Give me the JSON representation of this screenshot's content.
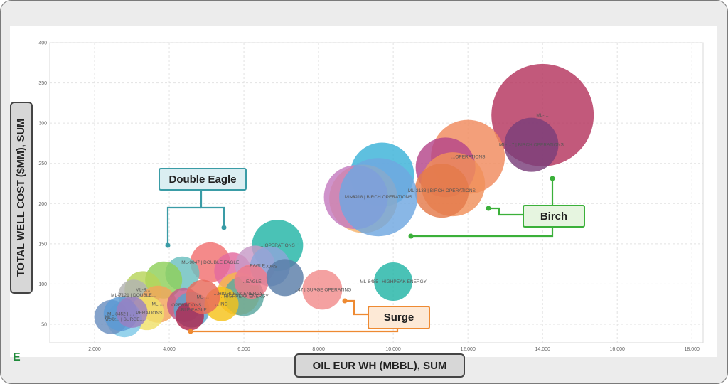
{
  "chart_data": {
    "type": "bubble",
    "xlabel": "OIL EUR WH (MBBL), SUM",
    "ylabel": "TOTAL WELL COST ($MM), SUM",
    "xlim": [
      800,
      18300
    ],
    "ylim": [
      27,
      400
    ],
    "xticks": [
      "2,000",
      "4,000",
      "6,000",
      "8,000",
      "10,000",
      "12,000",
      "14,000",
      "16,000",
      "18,000"
    ],
    "xtick_values": [
      2000,
      4000,
      6000,
      8000,
      10000,
      12000,
      14000,
      16000,
      18000
    ],
    "yticks": [
      "50",
      "100",
      "150",
      "200",
      "250",
      "300",
      "350",
      "400"
    ],
    "ytick_values": [
      50,
      100,
      150,
      200,
      250,
      300,
      350,
      400
    ],
    "grid": true,
    "points": [
      {
        "x": 14000,
        "y": 310,
        "size": 72,
        "color": "#b5345e",
        "label": "ML-…"
      },
      {
        "x": 13700,
        "y": 273,
        "size": 38,
        "color": "#7a3e7a",
        "label": "ML-…7 | BIRCH OPERATIONS"
      },
      {
        "x": 12000,
        "y": 258,
        "size": 52,
        "color": "#f08a5d",
        "label": "…OPERATIONS"
      },
      {
        "x": 11400,
        "y": 245,
        "size": 42,
        "color": "#b5468a",
        "label": ""
      },
      {
        "x": 11600,
        "y": 224,
        "size": 45,
        "color": "#f0905a",
        "label": ""
      },
      {
        "x": 11300,
        "y": 216,
        "size": 38,
        "color": "#e47a4a",
        "label": "ML-2138 | BIRCH OPERATIONS"
      },
      {
        "x": 9700,
        "y": 236,
        "size": 45,
        "color": "#3bb2d8",
        "label": ""
      },
      {
        "x": 9200,
        "y": 206,
        "size": 48,
        "color": "#f5b26a",
        "label": ""
      },
      {
        "x": 9000,
        "y": 208,
        "size": 45,
        "color": "#c57bc0",
        "label": "ML-…"
      },
      {
        "x": 9600,
        "y": 208,
        "size": 55,
        "color": "#6fa7e0",
        "label": "ML-8218 | BIRCH OPERATIONS"
      },
      {
        "x": 10000,
        "y": 103,
        "size": 27,
        "color": "#22b5a6",
        "label": "ML-8485 | HIGHPEAK ENERGY"
      },
      {
        "x": 6900,
        "y": 148,
        "size": 36,
        "color": "#22b5a6",
        "label": "…OPERATIONS"
      },
      {
        "x": 5100,
        "y": 127,
        "size": 28,
        "color": "#f27070",
        "label": "ML-9047 | DOUBLE EAGLE"
      },
      {
        "x": 4350,
        "y": 113,
        "size": 24,
        "color": "#6bbfbf",
        "label": ""
      },
      {
        "x": 3850,
        "y": 105,
        "size": 26,
        "color": "#8fcf5a",
        "label": ""
      },
      {
        "x": 3300,
        "y": 93,
        "size": 26,
        "color": "#b7d45a",
        "label": "ML-8…"
      },
      {
        "x": 3050,
        "y": 86,
        "size": 22,
        "color": "#b2b2b2",
        "label": "ML-7121 | DOUBLE…"
      },
      {
        "x": 3700,
        "y": 75,
        "size": 26,
        "color": "#f3a55a",
        "label": "ML-…"
      },
      {
        "x": 3400,
        "y": 64,
        "size": 24,
        "color": "#f0e06a",
        "label": "…PERATIONS"
      },
      {
        "x": 2800,
        "y": 56,
        "size": 25,
        "color": "#7fc9e8",
        "label": "ML-8… | SURGE…"
      },
      {
        "x": 2450,
        "y": 59,
        "size": 24,
        "color": "#6a8fbf",
        "label": "ML-…"
      },
      {
        "x": 2700,
        "y": 63,
        "size": 24,
        "color": "#5b9bd5",
        "label": "ML-8452 | …"
      },
      {
        "x": 3000,
        "y": 65,
        "size": 22,
        "color": "#9a7fc2",
        "label": ""
      },
      {
        "x": 4400,
        "y": 74,
        "size": 24,
        "color": "#c15a8a",
        "label": "…OPERATIONS"
      },
      {
        "x": 4600,
        "y": 68,
        "size": 25,
        "color": "#5aa2c9",
        "label": "…BLE EAGLE"
      },
      {
        "x": 4550,
        "y": 60,
        "size": 20,
        "color": "#b0274f",
        "label": ""
      },
      {
        "x": 5700,
        "y": 116,
        "size": 26,
        "color": "#e36a9f",
        "label": ""
      },
      {
        "x": 5850,
        "y": 88,
        "size": 30,
        "color": "#f5b84a",
        "label": "…HIGHPEAK ENERGY"
      },
      {
        "x": 6000,
        "y": 85,
        "size": 28,
        "color": "#5aa7a0",
        "label": "…HIGHPEAK ENERGY"
      },
      {
        "x": 6300,
        "y": 123,
        "size": 28,
        "color": "#c79ac7",
        "label": "…EAGLE"
      },
      {
        "x": 6700,
        "y": 122,
        "size": 28,
        "color": "#8ea6d9",
        "label": "…ONS"
      },
      {
        "x": 6200,
        "y": 103,
        "size": 24,
        "color": "#f07a8a",
        "label": "…EAGLE"
      },
      {
        "x": 5400,
        "y": 75,
        "size": 24,
        "color": "#f5c21a",
        "label": "…ING"
      },
      {
        "x": 4900,
        "y": 84,
        "size": 24,
        "color": "#e86a5a",
        "label": "ML-…"
      },
      {
        "x": 7100,
        "y": 108,
        "size": 26,
        "color": "#5a7ea8",
        "label": ""
      },
      {
        "x": 8100,
        "y": 93,
        "size": 28,
        "color": "#f28c8c",
        "label": "…47 | SURGE OPERATING"
      }
    ],
    "callouts": [
      {
        "label": "Double Eagle",
        "border": "#3a9ca6",
        "fill": "#dbeef2"
      },
      {
        "label": "Birch",
        "border": "#3bb03a",
        "fill": "#e6f5e0"
      },
      {
        "label": "Surge",
        "border": "#ee8a32",
        "fill": "#fde9d6"
      }
    ]
  },
  "logo_text": "E"
}
